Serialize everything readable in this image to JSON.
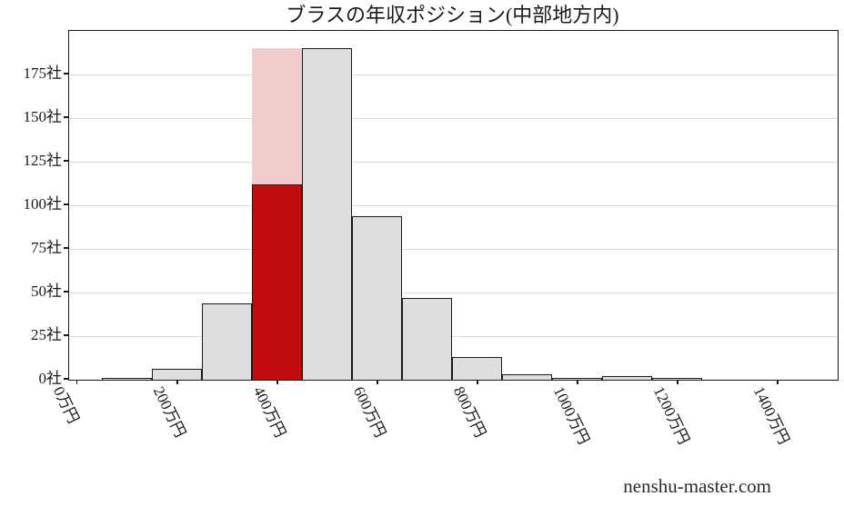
{
  "title": "ブラスの年収ポジション(中部地方内)",
  "watermark": "nenshu-master.com",
  "chart_data": {
    "type": "bar",
    "subtype": "histogram",
    "title": "ブラスの年収ポジション(中部地方内)",
    "xlabel": "",
    "ylabel": "",
    "units": {
      "x": "万円",
      "y": "社"
    },
    "xlim": [
      -18,
      1518
    ],
    "ylim": [
      0,
      200
    ],
    "x_ticks": [
      0,
      200,
      400,
      600,
      800,
      1000,
      1200,
      1400
    ],
    "x_tick_labels": [
      "0万円",
      "200万円",
      "400万円",
      "600万円",
      "800万円",
      "1000万円",
      "1200万円",
      "1400万円"
    ],
    "x_tick_rotation_deg": 64,
    "y_ticks": [
      0,
      25,
      50,
      75,
      100,
      125,
      150,
      175
    ],
    "y_tick_labels": [
      "0社",
      "25社",
      "50社",
      "75社",
      "100社",
      "125社",
      "150社",
      "175社"
    ],
    "grid": "horizontal-only",
    "legend": null,
    "bin_start": 48,
    "bin_width": 100,
    "bin_centers_approx": [
      100,
      200,
      300,
      400,
      500,
      600,
      700,
      800,
      900,
      1000,
      1100,
      1200
    ],
    "counts": [
      1,
      6,
      44,
      190,
      190,
      94,
      47,
      13,
      3,
      1,
      2,
      1
    ],
    "highlight": {
      "bin_index": 3,
      "bin_center": 400,
      "bin_total": 190,
      "position_value": 112
    },
    "colors": {
      "bar_fill": "#dedede",
      "bar_edge": "#1a1a1a",
      "highlight_fill": "#c00d0d",
      "highlight_background": "#f2cbcd",
      "gridline": "#dcdcdc",
      "axis": "#1a1a1a",
      "text": "#1a1a1a"
    }
  }
}
